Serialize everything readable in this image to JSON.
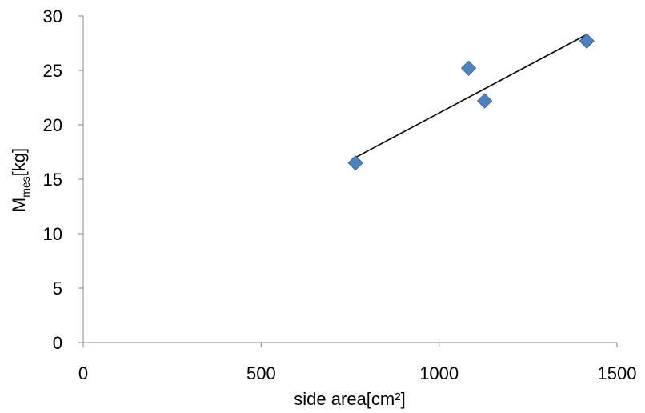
{
  "chart_data": {
    "type": "scatter",
    "xlabel": "side area[cm²]",
    "ylabel": {
      "main": "M",
      "sub": "mes",
      "unit": "[kg]"
    },
    "xlim": [
      0,
      1500
    ],
    "ylim": [
      0,
      30
    ],
    "xticks": [
      0,
      500,
      1000,
      1500
    ],
    "yticks": [
      0,
      5,
      10,
      15,
      20,
      25,
      30
    ],
    "grid": false,
    "legend": "none",
    "series": [
      {
        "marker": "diamond",
        "color": "#4F81BD",
        "points": [
          {
            "x": 765,
            "y": 16.5
          },
          {
            "x": 1083,
            "y": 25.2
          },
          {
            "x": 1128,
            "y": 22.2
          },
          {
            "x": 1415,
            "y": 27.7
          }
        ]
      }
    ],
    "trendline": {
      "type": "linear",
      "color": "#000000",
      "x_range": [
        765,
        1415
      ],
      "y_range": [
        17.0,
        28.3
      ]
    }
  }
}
